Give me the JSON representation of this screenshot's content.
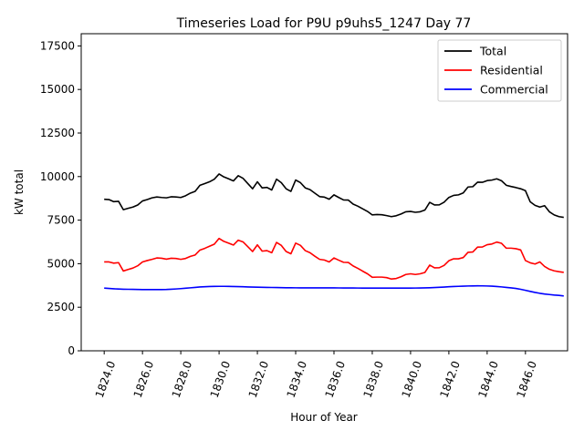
{
  "chart_data": {
    "type": "line",
    "title": "Timeseries Load for P9U p9uhs5_1247  Day 77",
    "xlabel": "Hour of Year",
    "ylabel": "kW total",
    "xlim": [
      1822.8,
      1848.2
    ],
    "ylim": [
      0,
      18200
    ],
    "xticks": [
      1824,
      1826,
      1828,
      1830,
      1832,
      1834,
      1836,
      1838,
      1840,
      1842,
      1844,
      1846
    ],
    "xtick_labels": [
      "1824.0",
      "1826.0",
      "1828.0",
      "1830.0",
      "1832.0",
      "1834.0",
      "1836.0",
      "1838.0",
      "1840.0",
      "1842.0",
      "1844.0",
      "1846.0"
    ],
    "yticks": [
      0,
      2500,
      5000,
      7500,
      10000,
      12500,
      15000,
      17500
    ],
    "ytick_labels": [
      "0",
      "2500",
      "5000",
      "7500",
      "10000",
      "12500",
      "15000",
      "17500"
    ],
    "legend_position": "top-right",
    "x_start": 1824,
    "x_step": 0.25,
    "series": [
      {
        "name": "Total",
        "color": "#000000",
        "values": [
          8700,
          8680,
          8560,
          8580,
          8100,
          8180,
          8250,
          8370,
          8600,
          8680,
          8780,
          8830,
          8800,
          8780,
          8840,
          8830,
          8800,
          8900,
          9050,
          9150,
          9500,
          9600,
          9700,
          9850,
          10150,
          9980,
          9870,
          9750,
          10050,
          9900,
          9600,
          9300,
          9700,
          9350,
          9380,
          9230,
          9850,
          9650,
          9300,
          9150,
          9800,
          9650,
          9350,
          9250,
          9050,
          8850,
          8820,
          8700,
          8950,
          8800,
          8660,
          8650,
          8420,
          8300,
          8150,
          8000,
          7800,
          7820,
          7810,
          7760,
          7700,
          7750,
          7850,
          7980,
          8000,
          7950,
          7980,
          8080,
          8520,
          8370,
          8380,
          8530,
          8800,
          8920,
          8950,
          9060,
          9400,
          9420,
          9680,
          9670,
          9770,
          9800,
          9870,
          9760,
          9500,
          9430,
          9370,
          9300,
          9190,
          8550,
          8350,
          8250,
          8330,
          7980,
          7800,
          7700,
          7660
        ]
      },
      {
        "name": "Residential",
        "color": "#ff0000",
        "values": [
          5100,
          5100,
          5030,
          5060,
          4580,
          4670,
          4750,
          4880,
          5100,
          5180,
          5250,
          5330,
          5310,
          5260,
          5310,
          5300,
          5250,
          5300,
          5420,
          5500,
          5780,
          5880,
          6000,
          6120,
          6450,
          6280,
          6180,
          6070,
          6350,
          6250,
          5980,
          5700,
          6080,
          5720,
          5750,
          5630,
          6220,
          6050,
          5700,
          5570,
          6180,
          6050,
          5750,
          5630,
          5430,
          5250,
          5210,
          5100,
          5330,
          5200,
          5080,
          5070,
          4870,
          4730,
          4570,
          4420,
          4220,
          4230,
          4230,
          4200,
          4120,
          4150,
          4250,
          4380,
          4420,
          4380,
          4420,
          4500,
          4920,
          4760,
          4770,
          4900,
          5170,
          5280,
          5280,
          5350,
          5650,
          5670,
          5950,
          5960,
          6090,
          6130,
          6240,
          6170,
          5890,
          5890,
          5860,
          5790,
          5180,
          5050,
          4980,
          5100,
          4840,
          4680,
          4590,
          4540,
          4500
        ]
      },
      {
        "name": "Commercial",
        "color": "#0000ff",
        "values": [
          3600,
          3580,
          3560,
          3545,
          3535,
          3530,
          3525,
          3520,
          3515,
          3513,
          3512,
          3512,
          3515,
          3520,
          3535,
          3550,
          3570,
          3590,
          3615,
          3640,
          3665,
          3680,
          3690,
          3695,
          3700,
          3700,
          3695,
          3690,
          3685,
          3675,
          3665,
          3655,
          3650,
          3645,
          3640,
          3635,
          3630,
          3625,
          3620,
          3618,
          3615,
          3614,
          3613,
          3612,
          3612,
          3612,
          3612,
          3611,
          3610,
          3608,
          3606,
          3604,
          3603,
          3602,
          3601,
          3600,
          3599,
          3599,
          3598,
          3598,
          3598,
          3598,
          3598,
          3599,
          3600,
          3602,
          3605,
          3610,
          3620,
          3633,
          3646,
          3660,
          3675,
          3688,
          3700,
          3710,
          3720,
          3725,
          3728,
          3726,
          3720,
          3710,
          3690,
          3668,
          3640,
          3610,
          3580,
          3530,
          3470,
          3410,
          3350,
          3300,
          3260,
          3230,
          3200,
          3180,
          3150
        ]
      }
    ]
  }
}
